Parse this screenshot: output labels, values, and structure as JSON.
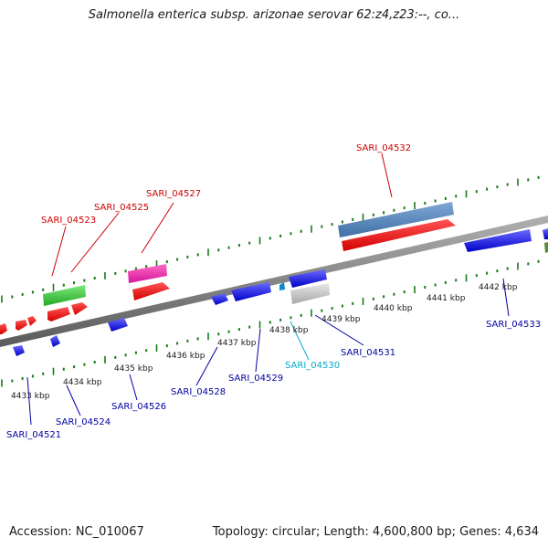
{
  "title": "Salmonella enterica subsp. arizonae serovar 62:z4,z23:--, co...",
  "footer": {
    "accession": "Accession: NC_010067",
    "summary": "Topology: circular; Length: 4,600,800 bp; Genes: 4,634"
  },
  "colors": {
    "backbone": "#8a8a8a",
    "ticks": "#1a7a1a",
    "forward_label": "#cc0000",
    "reverse_label": "#0000a0",
    "highlight_label": "#00aacc"
  },
  "scale_labels": [
    "4433 kbp",
    "4434 kbp",
    "4435 kbp",
    "4436 kbp",
    "4437 kbp",
    "4438 kbp",
    "4439 kbp",
    "4440 kbp",
    "4441 kbp",
    "4442 kbp"
  ],
  "gene_labels": {
    "top": [
      "SARI_04523",
      "SARI_04525",
      "SARI_04527",
      "SARI_04532"
    ],
    "bottom": [
      "SARI_04521",
      "SARI_04524",
      "SARI_04526",
      "SARI_04528",
      "SARI_04529",
      "SARI_04530",
      "SARI_04531",
      "SARI_04533"
    ]
  }
}
